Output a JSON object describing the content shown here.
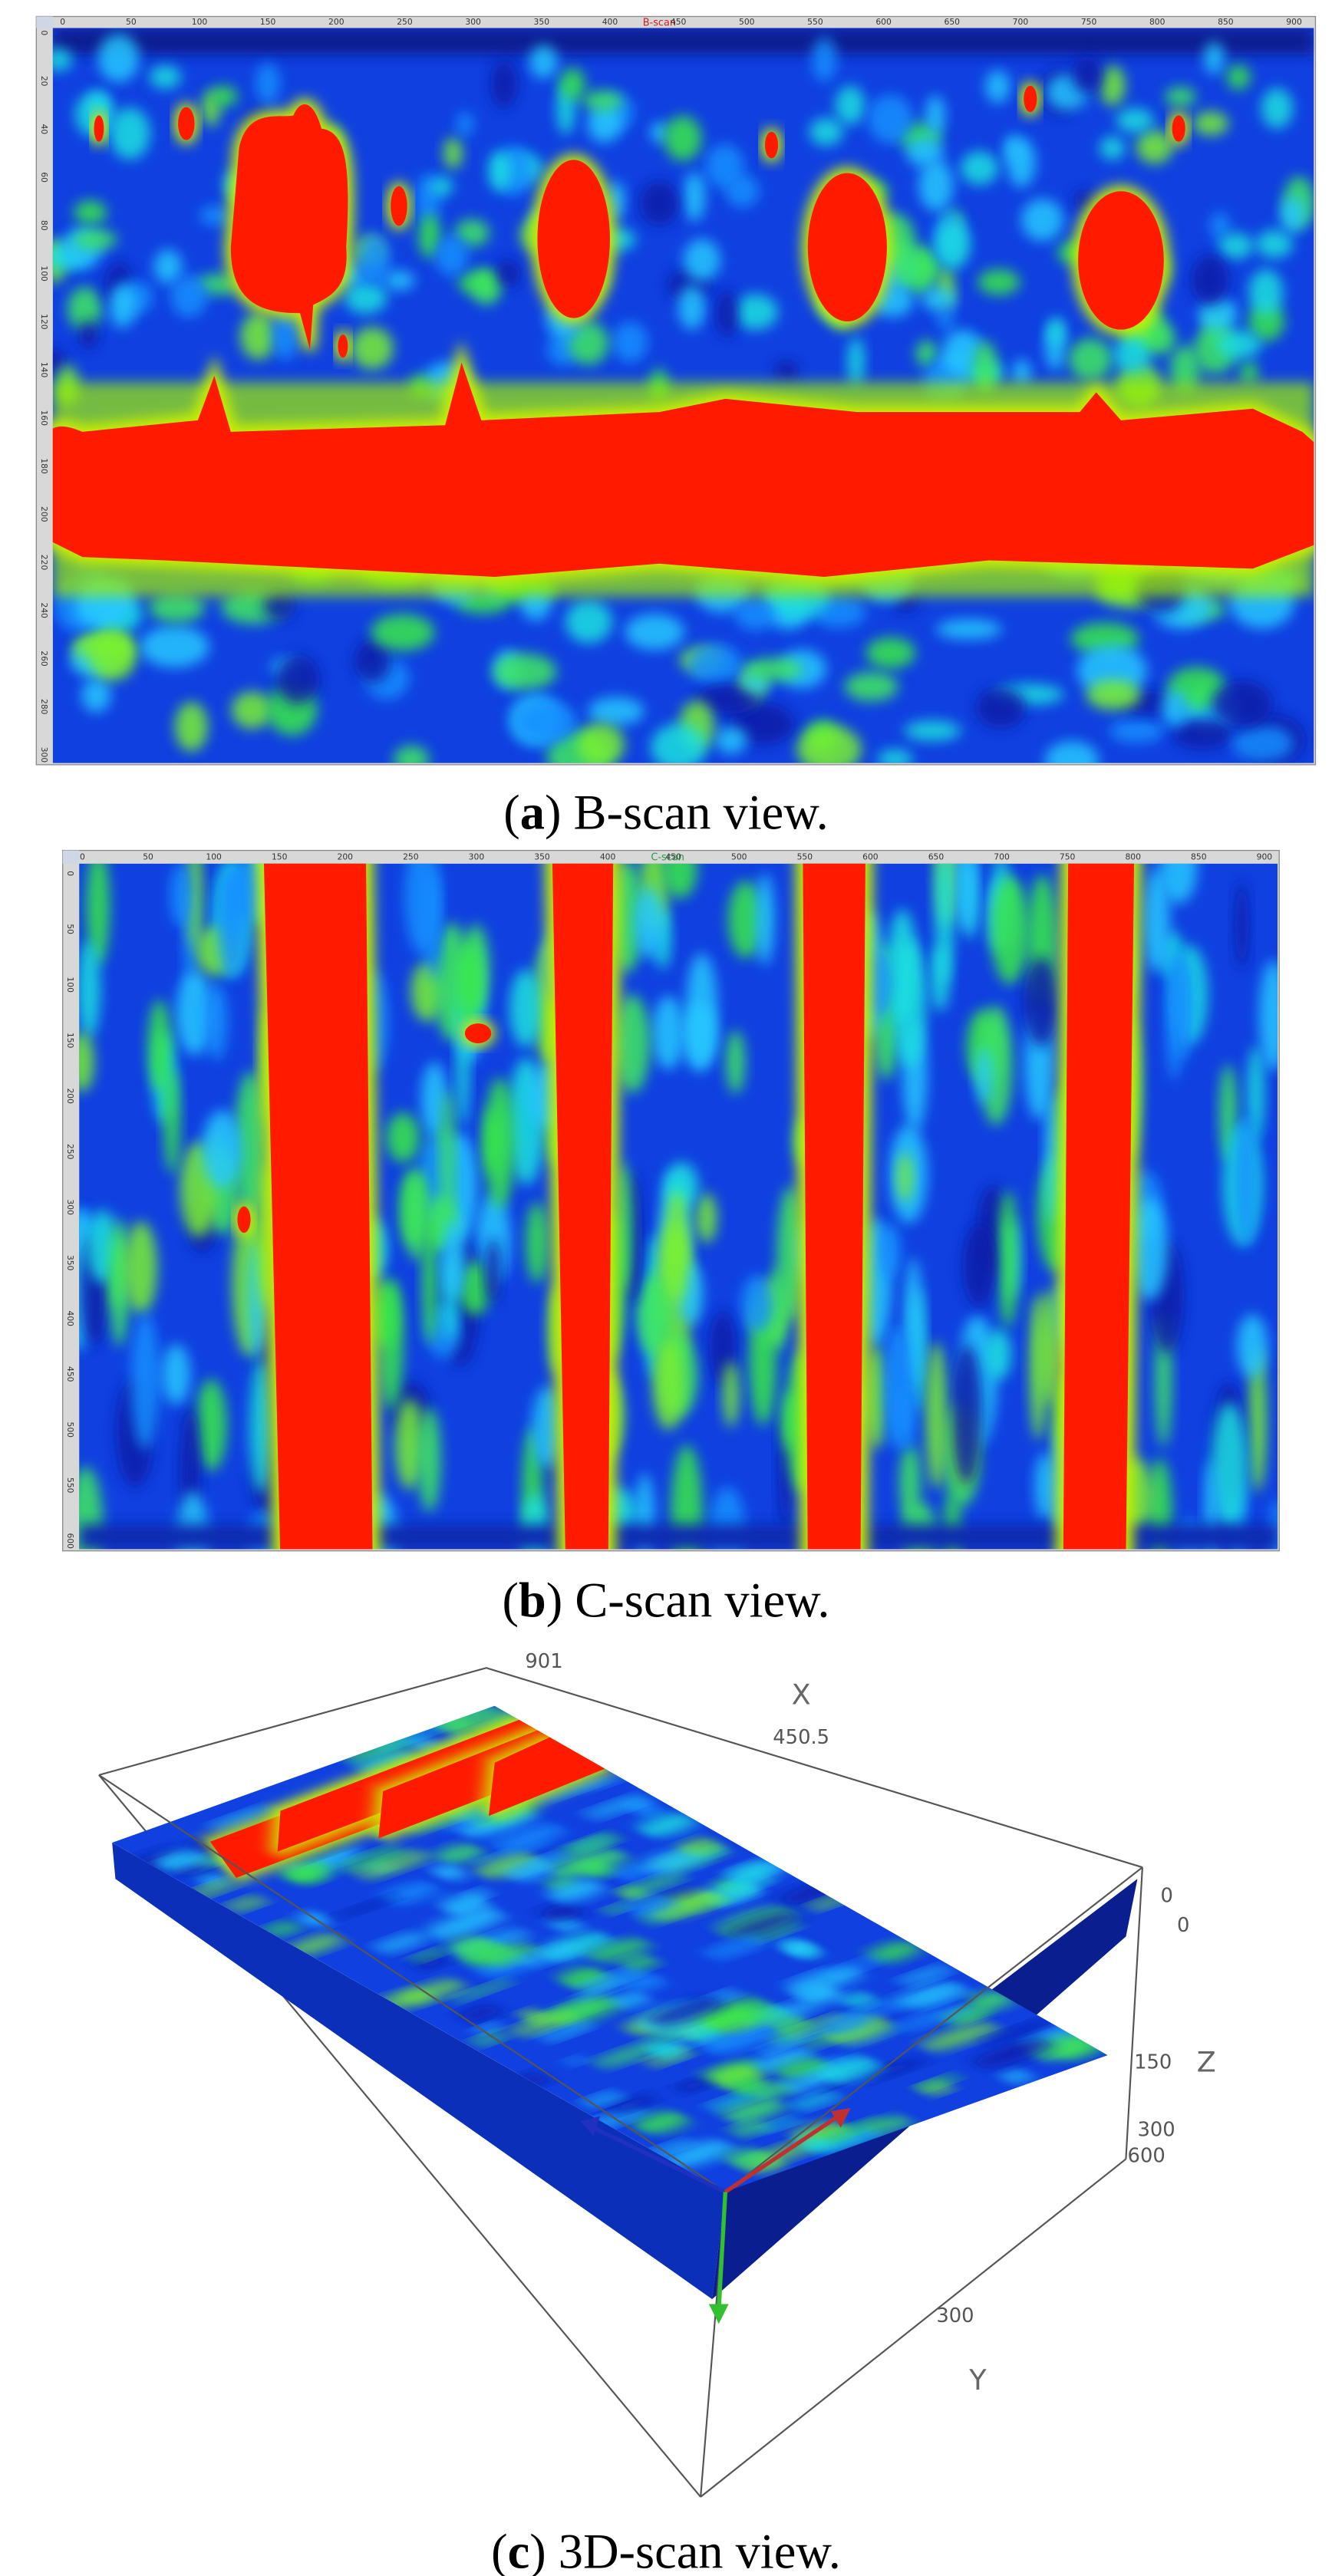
{
  "panels": [
    {
      "title": "B-scan",
      "x_ticks": [
        0,
        50,
        100,
        150,
        200,
        250,
        300,
        350,
        400,
        450,
        500,
        550,
        600,
        650,
        700,
        750,
        800,
        850,
        900
      ],
      "y_ticks": [
        0,
        20,
        40,
        60,
        80,
        100,
        120,
        140,
        160,
        180,
        200,
        220,
        240,
        260,
        280,
        300
      ],
      "caption": {
        "open": "(",
        "letter": "a",
        "text": ") B-scan view."
      }
    },
    {
      "title": "C-scan",
      "x_ticks": [
        0,
        50,
        100,
        150,
        200,
        250,
        300,
        350,
        400,
        450,
        500,
        550,
        600,
        650,
        700,
        750,
        800,
        850,
        900
      ],
      "y_ticks": [
        0,
        50,
        100,
        150,
        200,
        250,
        300,
        350,
        400,
        450,
        500,
        550,
        600
      ],
      "caption": {
        "open": "(",
        "letter": "b",
        "text": ") C-scan view."
      }
    }
  ],
  "scan_3d": {
    "labels": {
      "x_max": 901,
      "x_name": "X",
      "x_mid": 450.5,
      "z_min": 0,
      "y_min": 0,
      "z_mid": 150,
      "z_name": "Z",
      "z_max": 300,
      "y_max": 600,
      "y_mid": 300,
      "y_name": "Y"
    },
    "caption": {
      "open": "(",
      "letter": "c",
      "text": ") 3D-scan view."
    }
  }
}
